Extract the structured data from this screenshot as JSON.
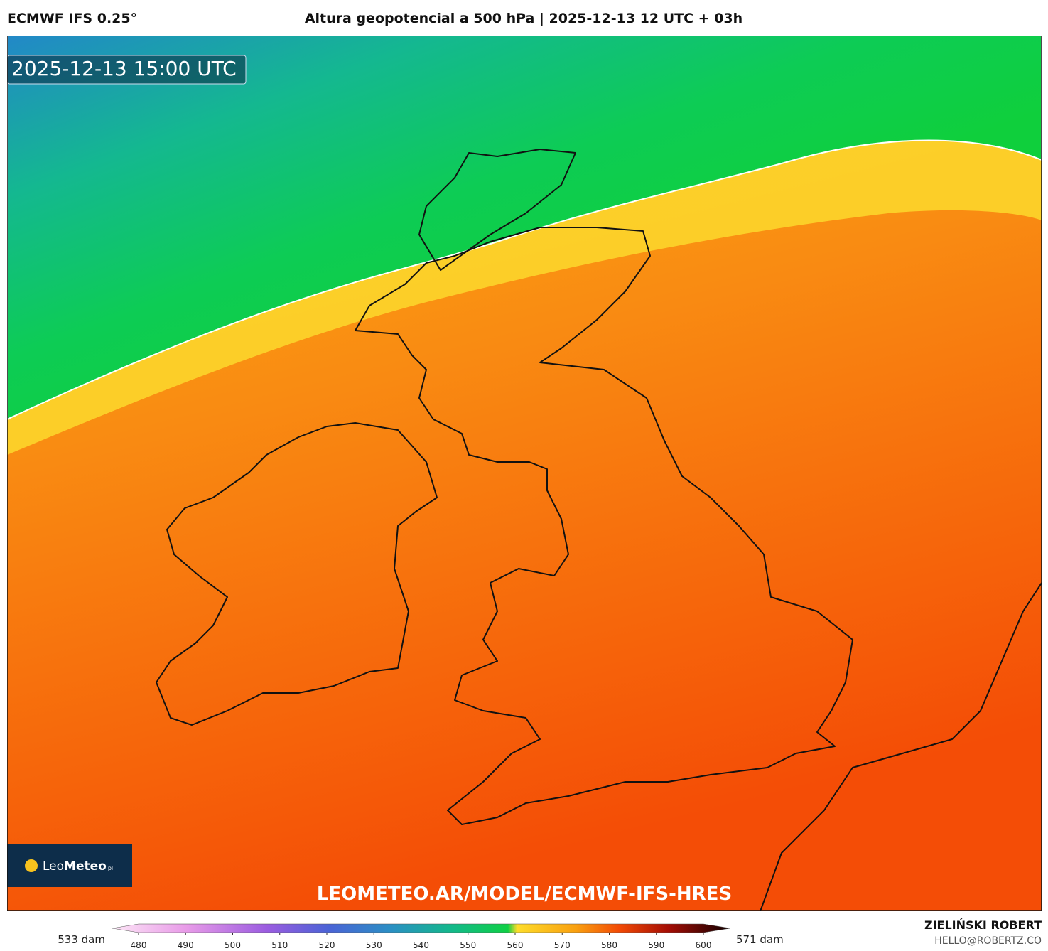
{
  "header": {
    "model": "ECMWF IFS 0.25°",
    "title": "Altura geopotencial a 500 hPa | 2025-12-13 12 UTC + 03h"
  },
  "map": {
    "timestamp": "2025-12-13 15:00 UTC",
    "url": "LEOMETEO.AR/MODEL/ECMWF-IFS-HRES"
  },
  "logo": {
    "prefix": "Leo",
    "name": "Meteo",
    "suffix": "pl"
  },
  "colorbar": {
    "min_label": "533 dam",
    "max_label": "571 dam",
    "ticks": [
      480,
      490,
      500,
      510,
      520,
      530,
      540,
      550,
      560,
      570,
      580,
      590,
      600
    ]
  },
  "footer": {
    "author": "ZIELIŃSKI ROBERT",
    "email": "HELLO@ROBERTZ.CO"
  }
}
